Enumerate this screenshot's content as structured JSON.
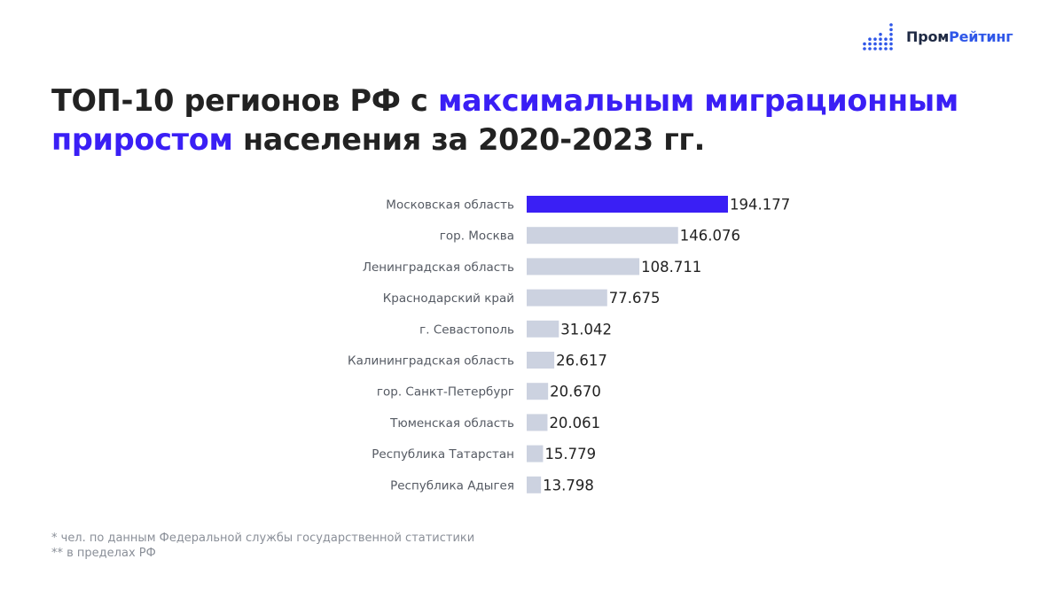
{
  "logo": {
    "part1": "Пром",
    "part2": "Рейтинг"
  },
  "title": {
    "part1": "ТОП-10 регионов РФ с ",
    "accent": "максимальным миграционным приростом",
    "part2": " населения за 2020-2023 гг."
  },
  "colors": {
    "highlight_bar": "#3a1ff5",
    "default_bar": "#ccd2e0",
    "logo_blue": "#2f57e8"
  },
  "chart_data": {
    "type": "bar",
    "orientation": "horizontal",
    "categories": [
      "Московская область",
      "гор. Москва",
      "Ленинградская область",
      "Краснодарский край",
      "г. Севастополь",
      "Калининградская область",
      "гор. Санкт-Петербург",
      "Тюменская область",
      "Республика Татарстан",
      "Республика Адыгея"
    ],
    "values": [
      194177,
      146076,
      108711,
      77675,
      31042,
      26617,
      20670,
      20061,
      15779,
      13798
    ],
    "value_labels": [
      "194.177",
      "146.076",
      "108.711",
      "77.675",
      "31.042",
      "26.617",
      "20.670",
      "20.061",
      "15.779",
      "13.798"
    ],
    "highlighted_index": 0,
    "title": "ТОП-10 регионов РФ с максимальным миграционным приростом населения за 2020-2023 гг.",
    "xlabel": "",
    "ylabel": "",
    "grid": false,
    "legend": "none"
  },
  "footnotes": [
    "* чел. по данным Федеральной службы государственной статистики",
    "** в пределах РФ"
  ]
}
